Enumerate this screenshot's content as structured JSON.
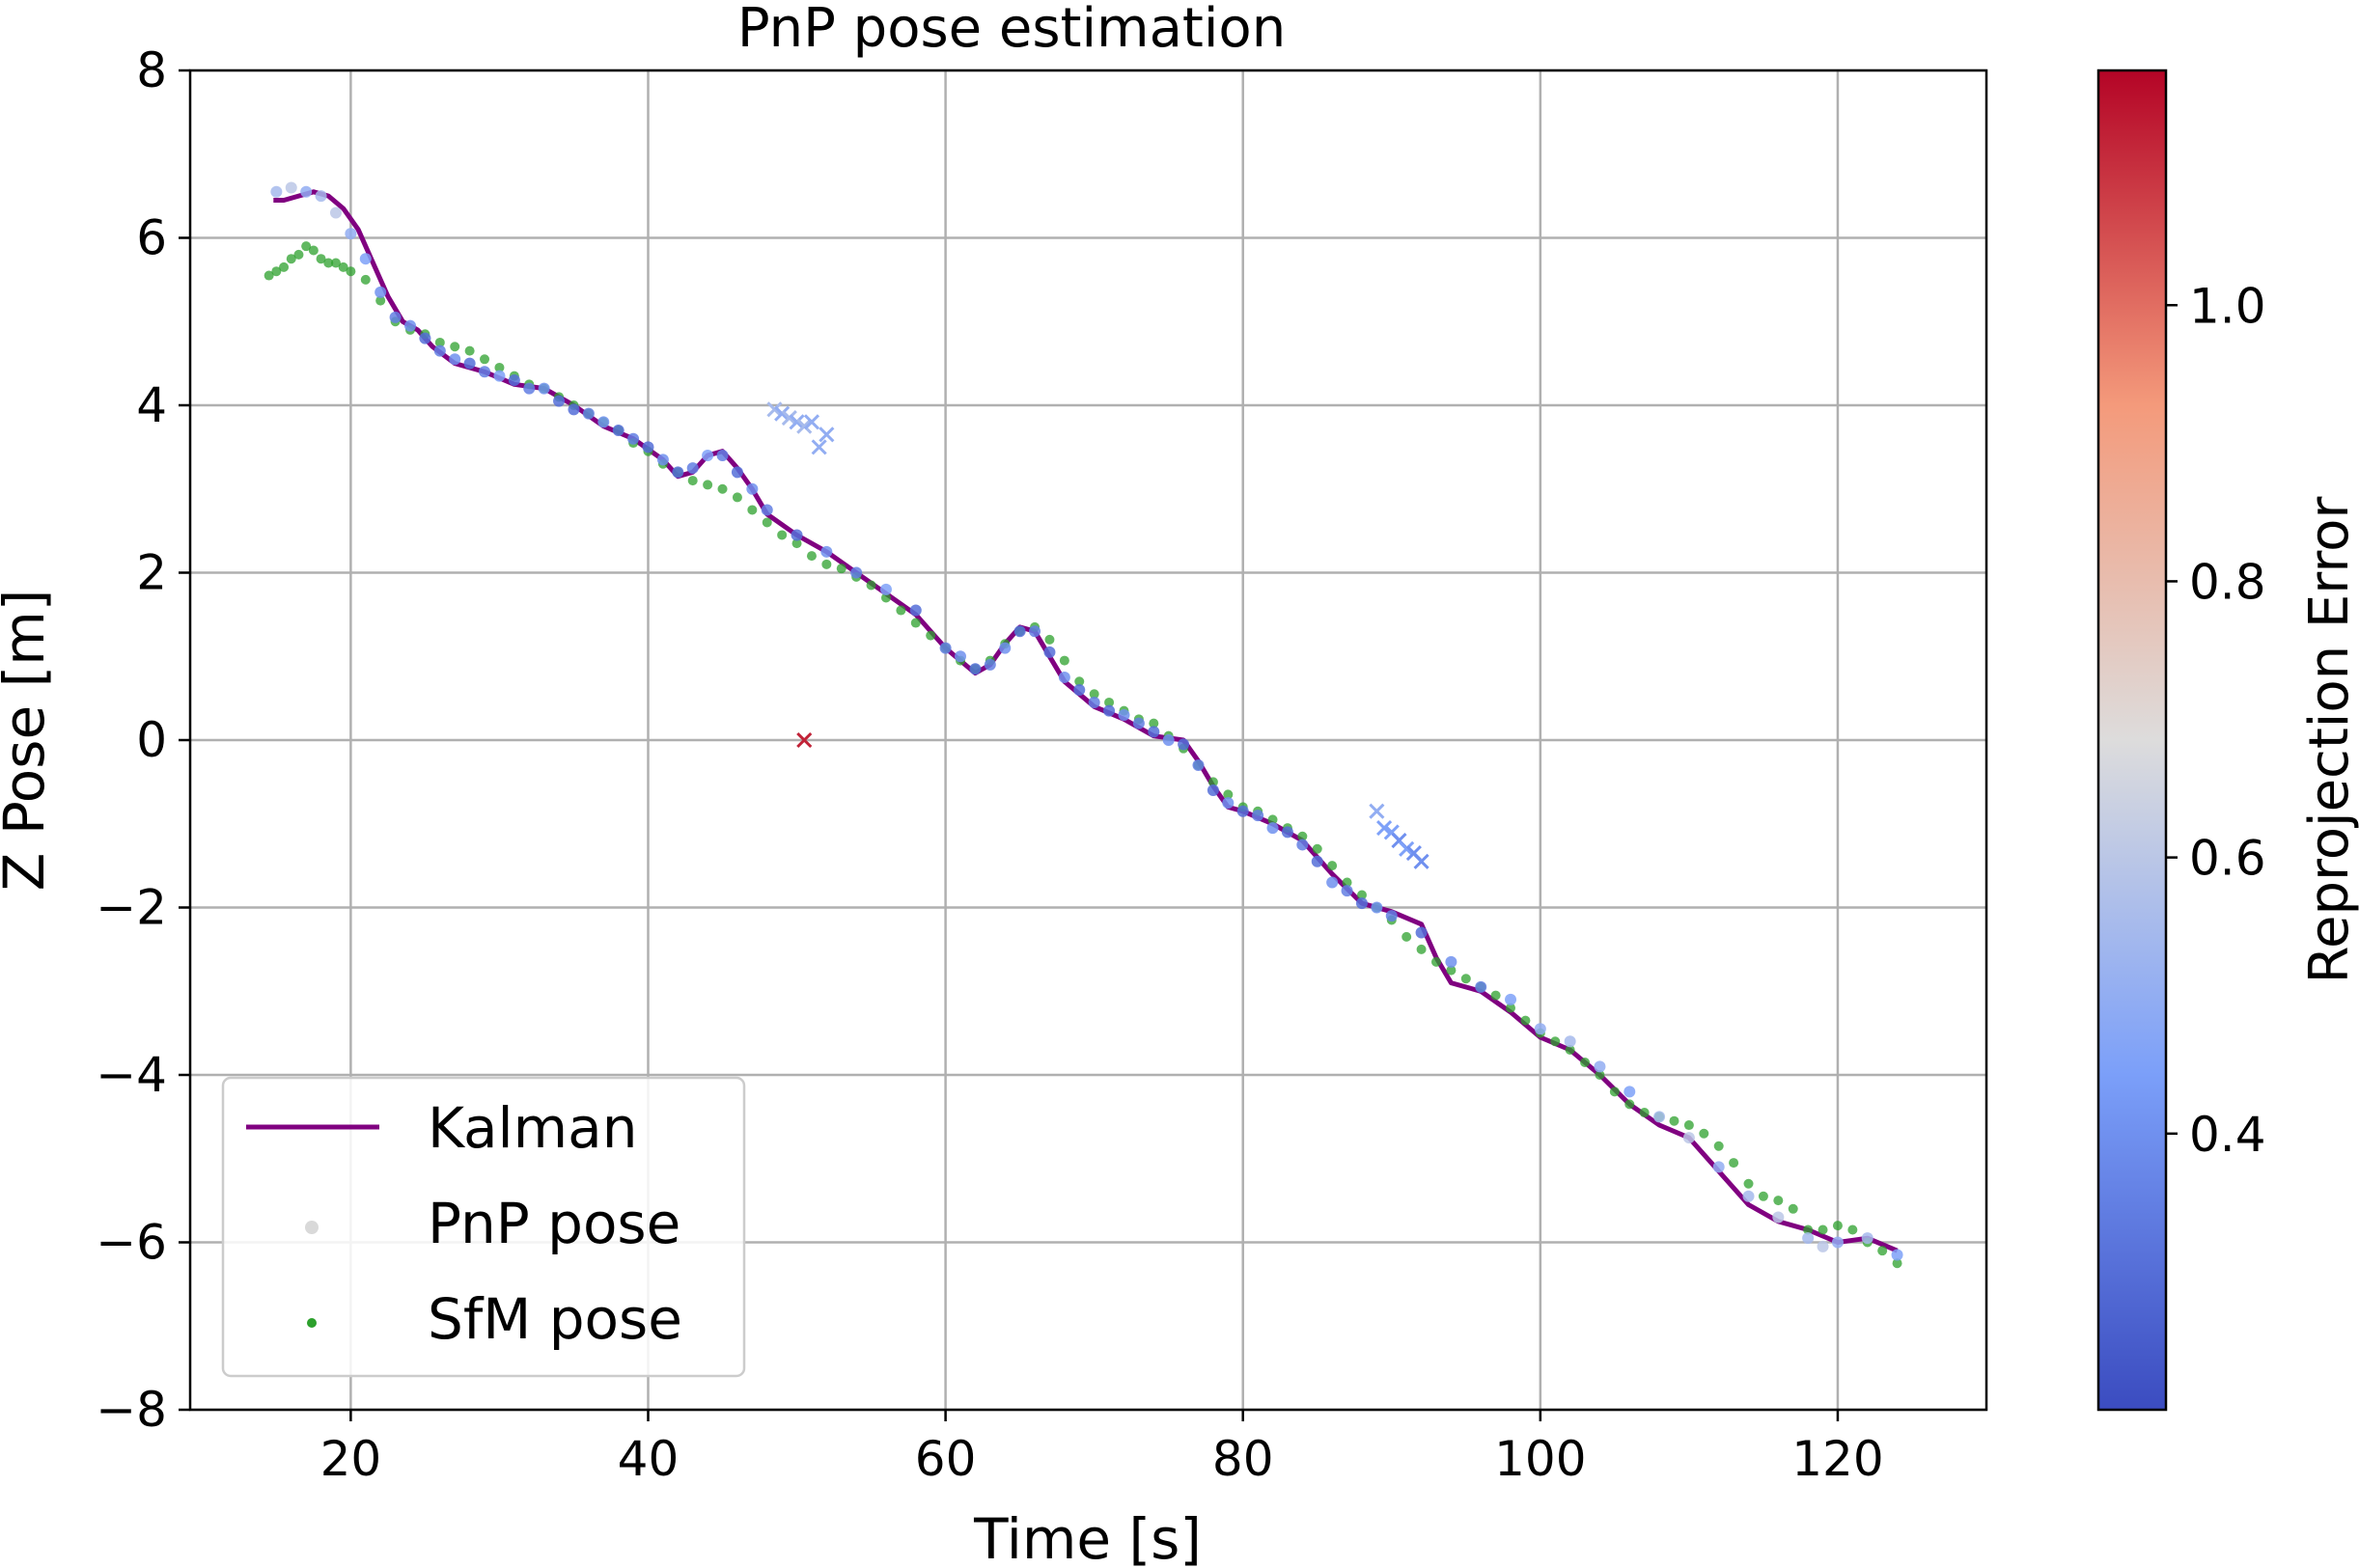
{
  "chart_data": {
    "type": "scatter",
    "title": "PnP pose estimation",
    "xlabel": "Time [s]",
    "ylabel": "Z Pose [m]",
    "xlim": [
      9.2,
      130
    ],
    "ylim": [
      -8,
      8
    ],
    "x_ticks": [
      20,
      40,
      60,
      80,
      100,
      120
    ],
    "y_ticks": [
      -8,
      -6,
      -4,
      -2,
      0,
      2,
      4,
      6,
      8
    ],
    "x_tick_labels": [
      "20",
      "40",
      "60",
      "80",
      "100",
      "120"
    ],
    "y_tick_labels": [
      "−8",
      "−6",
      "−4",
      "−2",
      "0",
      "2",
      "4",
      "6",
      "8"
    ],
    "grid": true,
    "legend_position": "lower-left",
    "legend": [
      {
        "label": "Kalman",
        "marker": "line",
        "color": "#800080"
      },
      {
        "label": "PnP pose",
        "marker": "dot",
        "color": "#d9d9d9"
      },
      {
        "label": "SfM pose",
        "marker": "dot",
        "color": "#2ca02c"
      }
    ],
    "colorbar": {
      "label": "Reprojection Error",
      "range": [
        0.2,
        1.17
      ],
      "ticks": [
        0.4,
        0.6,
        0.8,
        1.0
      ],
      "tick_labels": [
        "0.4",
        "0.6",
        "0.8",
        "1.0"
      ],
      "colormap": "coolwarm"
    },
    "series": [
      {
        "name": "Kalman",
        "type": "line",
        "color": "#800080",
        "x": [
          14.8,
          15.5,
          16.5,
          17.5,
          18.5,
          19.5,
          20.5,
          21.5,
          22.5,
          23.5,
          24.5,
          25.5,
          27,
          29,
          31,
          33,
          35,
          37,
          39,
          41,
          42,
          43,
          44,
          45,
          46,
          47,
          48,
          50,
          52,
          54,
          56,
          58,
          60,
          62,
          63,
          64,
          65,
          66,
          67,
          68,
          69,
          70,
          72,
          74,
          76,
          77,
          78,
          79,
          80,
          82,
          84,
          86,
          88,
          90,
          92,
          93,
          94,
          96,
          98,
          100,
          102,
          104,
          106,
          108,
          110,
          112,
          114,
          116,
          118,
          120,
          122,
          124
        ],
        "y": [
          6.45,
          6.45,
          6.5,
          6.55,
          6.5,
          6.35,
          6.1,
          5.7,
          5.3,
          5.0,
          4.9,
          4.7,
          4.5,
          4.4,
          4.25,
          4.2,
          4.0,
          3.75,
          3.6,
          3.35,
          3.15,
          3.2,
          3.4,
          3.45,
          3.25,
          3.0,
          2.7,
          2.45,
          2.25,
          2.0,
          1.75,
          1.5,
          1.1,
          0.8,
          0.9,
          1.15,
          1.35,
          1.3,
          1.0,
          0.7,
          0.55,
          0.4,
          0.25,
          0.05,
          0.0,
          -0.25,
          -0.55,
          -0.8,
          -0.85,
          -1.0,
          -1.2,
          -1.6,
          -1.95,
          -2.05,
          -2.2,
          -2.6,
          -2.9,
          -3.0,
          -3.25,
          -3.55,
          -3.7,
          -4.0,
          -4.35,
          -4.6,
          -4.75,
          -5.15,
          -5.55,
          -5.75,
          -5.85,
          -6.0,
          -5.95,
          -6.1
        ]
      },
      {
        "name": "PnP pose",
        "type": "scatter",
        "marker": "dot",
        "x": [
          15,
          16,
          17,
          18,
          19,
          20,
          21,
          22,
          23,
          24,
          25,
          26,
          27,
          28,
          29,
          30,
          31,
          32,
          33,
          34,
          35,
          36,
          37,
          38,
          39,
          40,
          41,
          42,
          43,
          44,
          45,
          46,
          47,
          48,
          50,
          52,
          54,
          56,
          58,
          60,
          61,
          62,
          63,
          64,
          65,
          66,
          67,
          68,
          69,
          70,
          71,
          72,
          73,
          74,
          75,
          76,
          77,
          78,
          79,
          80,
          81,
          82,
          83,
          84,
          85,
          86,
          87,
          88,
          89,
          90,
          92,
          94,
          96,
          98,
          100,
          102,
          104,
          106,
          108,
          110,
          112,
          114,
          116,
          118,
          119,
          120,
          122,
          124
        ],
        "y": [
          6.55,
          6.6,
          6.55,
          6.5,
          6.3,
          6.05,
          5.75,
          5.35,
          5.05,
          4.95,
          4.8,
          4.65,
          4.55,
          4.5,
          4.4,
          4.35,
          4.3,
          4.2,
          4.2,
          4.05,
          3.95,
          3.9,
          3.8,
          3.7,
          3.6,
          3.5,
          3.35,
          3.2,
          3.25,
          3.4,
          3.4,
          3.2,
          3.0,
          2.75,
          2.45,
          2.25,
          2.0,
          1.8,
          1.55,
          1.1,
          1.0,
          0.85,
          0.9,
          1.1,
          1.3,
          1.3,
          1.05,
          0.75,
          0.6,
          0.45,
          0.35,
          0.3,
          0.2,
          0.1,
          0.0,
          -0.05,
          -0.3,
          -0.6,
          -0.75,
          -0.85,
          -0.9,
          -1.05,
          -1.1,
          -1.25,
          -1.45,
          -1.7,
          -1.8,
          -1.95,
          -2.0,
          -2.1,
          -2.3,
          -2.65,
          -2.95,
          -3.1,
          -3.45,
          -3.6,
          -3.9,
          -4.2,
          -4.5,
          -4.75,
          -5.1,
          -5.45,
          -5.7,
          -5.95,
          -6.05,
          -6.0,
          -5.95,
          -6.15
        ],
        "error": [
          0.55,
          0.6,
          0.5,
          0.55,
          0.6,
          0.5,
          0.45,
          0.4,
          0.35,
          0.4,
          0.3,
          0.35,
          0.4,
          0.3,
          0.35,
          0.45,
          0.3,
          0.35,
          0.4,
          0.3,
          0.3,
          0.35,
          0.4,
          0.3,
          0.35,
          0.3,
          0.4,
          0.3,
          0.35,
          0.45,
          0.35,
          0.3,
          0.4,
          0.35,
          0.3,
          0.4,
          0.35,
          0.45,
          0.3,
          0.35,
          0.4,
          0.3,
          0.35,
          0.4,
          0.3,
          0.35,
          0.3,
          0.4,
          0.3,
          0.35,
          0.3,
          0.4,
          0.35,
          0.3,
          0.4,
          0.3,
          0.35,
          0.3,
          0.4,
          0.3,
          0.35,
          0.4,
          0.3,
          0.35,
          0.3,
          0.4,
          0.35,
          0.3,
          0.4,
          0.35,
          0.3,
          0.4,
          0.35,
          0.45,
          0.5,
          0.55,
          0.5,
          0.45,
          0.55,
          0.6,
          0.5,
          0.55,
          0.6,
          0.55,
          0.6,
          0.5,
          0.55,
          0.45
        ]
      },
      {
        "name": "PnP pose (rejected)",
        "type": "scatter",
        "marker": "x",
        "x": [
          48.5,
          49,
          49.5,
          50,
          50.5,
          51,
          51.5,
          52,
          50.5,
          89,
          89.5,
          90,
          90.5,
          91,
          91.5,
          92
        ],
        "y": [
          3.95,
          3.9,
          3.85,
          3.8,
          3.75,
          3.8,
          3.5,
          3.65,
          0.0,
          -0.85,
          -1.05,
          -1.1,
          -1.2,
          -1.3,
          -1.35,
          -1.45
        ],
        "error": [
          0.55,
          0.5,
          0.55,
          0.5,
          0.55,
          0.5,
          0.5,
          0.5,
          1.12,
          0.5,
          0.45,
          0.45,
          0.4,
          0.45,
          0.4,
          0.4
        ]
      },
      {
        "name": "SfM pose",
        "type": "scatter",
        "marker": "dot",
        "color": "#2ca02c",
        "x": [
          14.5,
          15,
          15.5,
          16,
          16.5,
          17,
          17.5,
          18,
          18.5,
          19,
          19.5,
          20,
          21,
          22,
          23,
          24,
          25,
          26,
          27,
          28,
          29,
          30,
          31,
          32,
          33,
          34,
          35,
          36,
          37,
          38,
          39,
          40,
          41,
          42,
          43,
          44,
          45,
          46,
          47,
          48,
          49,
          50,
          51,
          52,
          53,
          54,
          55,
          56,
          57,
          58,
          59,
          60,
          61,
          62,
          63,
          64,
          65,
          66,
          67,
          68,
          69,
          70,
          71,
          72,
          73,
          74,
          75,
          76,
          77,
          78,
          79,
          80,
          81,
          82,
          83,
          84,
          85,
          86,
          87,
          88,
          89,
          90,
          91,
          92,
          93,
          94,
          95,
          96,
          97,
          98,
          99,
          100,
          101,
          102,
          103,
          104,
          105,
          106,
          107,
          108,
          109,
          110,
          111,
          112,
          113,
          114,
          115,
          116,
          117,
          118,
          119,
          120,
          121,
          122,
          123,
          124
        ],
        "y": [
          5.55,
          5.6,
          5.65,
          5.75,
          5.8,
          5.9,
          5.85,
          5.75,
          5.7,
          5.7,
          5.65,
          5.6,
          5.5,
          5.25,
          5.0,
          4.9,
          4.85,
          4.75,
          4.7,
          4.65,
          4.55,
          4.45,
          4.35,
          4.25,
          4.2,
          4.1,
          4.0,
          3.9,
          3.8,
          3.7,
          3.55,
          3.45,
          3.3,
          3.2,
          3.1,
          3.05,
          3.0,
          2.9,
          2.75,
          2.6,
          2.45,
          2.35,
          2.2,
          2.1,
          2.05,
          1.95,
          1.85,
          1.7,
          1.55,
          1.4,
          1.25,
          1.1,
          0.95,
          0.85,
          0.95,
          1.15,
          1.3,
          1.35,
          1.2,
          0.95,
          0.7,
          0.55,
          0.45,
          0.35,
          0.25,
          0.2,
          0.05,
          -0.1,
          -0.3,
          -0.5,
          -0.65,
          -0.8,
          -0.85,
          -0.95,
          -1.05,
          -1.15,
          -1.3,
          -1.5,
          -1.7,
          -1.85,
          -2.0,
          -2.15,
          -2.35,
          -2.5,
          -2.65,
          -2.75,
          -2.85,
          -2.95,
          -3.05,
          -3.2,
          -3.35,
          -3.5,
          -3.6,
          -3.7,
          -3.85,
          -4.0,
          -4.2,
          -4.35,
          -4.45,
          -4.5,
          -4.55,
          -4.6,
          -4.7,
          -4.85,
          -5.05,
          -5.3,
          -5.45,
          -5.5,
          -5.6,
          -5.85,
          -5.85,
          -5.8,
          -5.85,
          -6.0,
          -6.1,
          -6.25
        ]
      }
    ]
  }
}
